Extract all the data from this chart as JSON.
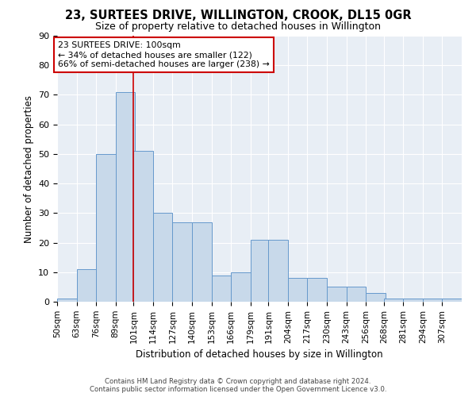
{
  "title": "23, SURTEES DRIVE, WILLINGTON, CROOK, DL15 0GR",
  "subtitle": "Size of property relative to detached houses in Willington",
  "xlabel": "Distribution of detached houses by size in Willington",
  "ylabel": "Number of detached properties",
  "bar_color": "#c8d9ea",
  "bar_edge_color": "#6699cc",
  "background_color": "#e8eef5",
  "grid_color": "#ffffff",
  "annotation_line_color": "#cc0000",
  "annotation_box_color": "#ffffff",
  "annotation_box_edge": "#cc0000",
  "annotation_text_line1": "23 SURTEES DRIVE: 100sqm",
  "annotation_text_line2": "← 34% of detached houses are smaller (122)",
  "annotation_text_line3": "66% of semi-detached houses are larger (238) →",
  "bins": [
    50,
    63,
    76,
    89,
    101,
    114,
    127,
    140,
    153,
    166,
    179,
    191,
    204,
    217,
    230,
    243,
    256,
    268,
    281,
    294,
    307
  ],
  "bin_labels": [
    "50sqm",
    "63sqm",
    "76sqm",
    "89sqm",
    "101sqm",
    "114sqm",
    "127sqm",
    "140sqm",
    "153sqm",
    "166sqm",
    "179sqm",
    "191sqm",
    "204sqm",
    "217sqm",
    "230sqm",
    "243sqm",
    "256sqm",
    "268sqm",
    "281sqm",
    "294sqm",
    "307sqm"
  ],
  "counts": [
    1,
    11,
    50,
    71,
    51,
    30,
    27,
    27,
    9,
    10,
    21,
    21,
    8,
    8,
    5,
    5,
    3,
    1,
    1,
    1,
    1
  ],
  "red_line_x": 101,
  "ylim": [
    0,
    90
  ],
  "yticks": [
    0,
    10,
    20,
    30,
    40,
    50,
    60,
    70,
    80,
    90
  ],
  "footer_line1": "Contains HM Land Registry data © Crown copyright and database right 2024.",
  "footer_line2": "Contains public sector information licensed under the Open Government Licence v3.0."
}
